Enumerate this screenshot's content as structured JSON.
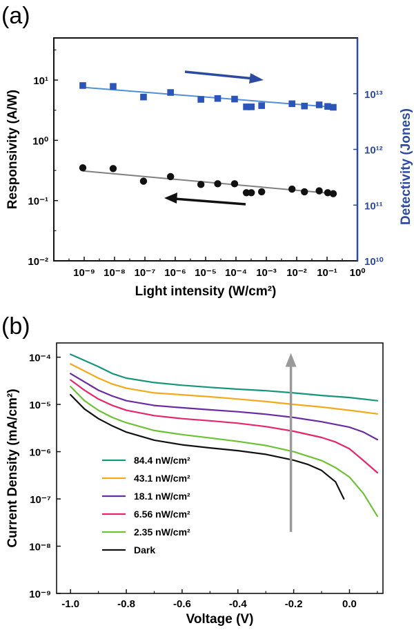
{
  "chart_data": [
    {
      "panel": "(a)",
      "type": "scatter",
      "x_scale": "log",
      "y_scale": "log",
      "xlabel": "Light intensity (W/cm²)",
      "xlim": [
        1e-10,
        1
      ],
      "x_ticks": [
        "10⁻⁹",
        "10⁻⁸",
        "10⁻⁷",
        "10⁻⁶",
        "10⁻⁵",
        "10⁻⁴",
        "10⁻³",
        "10⁻²",
        "10⁻¹",
        "10⁰"
      ],
      "y_left": {
        "label": "Responsivity (A/W)",
        "ylim": [
          0.01,
          50
        ],
        "ticks": [
          "10⁻²",
          "10⁻¹",
          "10⁰",
          "10¹"
        ],
        "color": "#111111"
      },
      "y_right": {
        "label": "Detectivity (Jones)",
        "ylim": [
          10000000000.0,
          100000000000000.0
        ],
        "ticks": [
          "10¹⁰",
          "10¹¹",
          "10¹²",
          "10¹³"
        ],
        "color": "#1f3f9a"
      },
      "series": [
        {
          "axis": "left",
          "marker": "circle",
          "color": "#111111",
          "fit_color": "#808080",
          "x": [
            9e-10,
            9e-09,
            9e-08,
            7e-07,
            7e-06,
            2.5e-05,
            9e-05,
            0.00022,
            0.00032,
            0.0007,
            0.007,
            0.018,
            0.055,
            0.105,
            0.16
          ],
          "y": [
            0.35,
            0.34,
            0.21,
            0.25,
            0.185,
            0.19,
            0.19,
            0.135,
            0.135,
            0.14,
            0.155,
            0.14,
            0.145,
            0.135,
            0.13
          ],
          "fit": {
            "x": [
              9e-10,
              0.18
            ],
            "y": [
              0.31,
              0.13
            ]
          }
        },
        {
          "axis": "right",
          "marker": "square",
          "color": "#2b55b8",
          "fit_color": "#4f8fd6",
          "x": [
            9e-10,
            9e-09,
            9e-08,
            7e-07,
            7e-06,
            2.5e-05,
            9e-05,
            0.00022,
            0.00032,
            0.0007,
            0.007,
            0.018,
            0.055,
            0.105,
            0.16
          ],
          "y": [
            14000000000000.0,
            13500000000000.0,
            8700000000000.0,
            10500000000000.0,
            7900000000000.0,
            8200000000000.0,
            8000000000000.0,
            5800000000000.0,
            5800000000000.0,
            6100000000000.0,
            6600000000000.0,
            6000000000000.0,
            6300000000000.0,
            5900000000000.0,
            5700000000000.0
          ],
          "fit": {
            "x": [
              9e-10,
              0.18
            ],
            "y": [
              13000000000000.0,
              5700000000000.0
            ]
          }
        }
      ],
      "arrows": [
        {
          "direction": "right",
          "color": "#2b4aa0"
        },
        {
          "direction": "left",
          "color": "#111111"
        }
      ]
    },
    {
      "panel": "(b)",
      "type": "line",
      "y_scale": "log",
      "xlabel": "Voltage (V)",
      "ylabel": "Current Density (mA/cm²)",
      "xlim": [
        -1.05,
        0.12
      ],
      "ylim": [
        1e-09,
        0.0002
      ],
      "x_ticks": [
        "-1.0",
        "-0.8",
        "-0.6",
        "-0.4",
        "-0.2",
        "0.0"
      ],
      "y_ticks": [
        "10⁻⁹",
        "10⁻⁸",
        "10⁻⁷",
        "10⁻⁶",
        "10⁻⁵",
        "10⁻⁴"
      ],
      "arrow": {
        "x": -0.21,
        "from": 2e-08,
        "to": 0.0001,
        "color": "#9a9a9a"
      },
      "series": [
        {
          "name": "84.4 nW/cm²",
          "color": "#14967a",
          "x": [
            -1.0,
            -0.95,
            -0.9,
            -0.85,
            -0.8,
            -0.7,
            -0.6,
            -0.5,
            -0.4,
            -0.3,
            -0.2,
            -0.1,
            0.0,
            0.1
          ],
          "y": [
            0.000115,
            8.5e-05,
            6.3e-05,
            4.5e-05,
            3.6e-05,
            2.9e-05,
            2.55e-05,
            2.3e-05,
            2.1e-05,
            1.95e-05,
            1.75e-05,
            1.55e-05,
            1.4e-05,
            1.2e-05
          ]
        },
        {
          "name": "43.1 nW/cm²",
          "color": "#f5a818",
          "x": [
            -1.0,
            -0.95,
            -0.9,
            -0.85,
            -0.8,
            -0.7,
            -0.6,
            -0.5,
            -0.4,
            -0.3,
            -0.2,
            -0.1,
            0.0,
            0.1
          ],
          "y": [
            7.2e-05,
            5.1e-05,
            3.6e-05,
            2.7e-05,
            2.2e-05,
            1.75e-05,
            1.6e-05,
            1.45e-05,
            1.3e-05,
            1.15e-05,
            1e-05,
            8.8e-06,
            7.5e-06,
            6.3e-06
          ]
        },
        {
          "name": "18.1 nW/cm²",
          "color": "#6a2aa3",
          "x": [
            -1.0,
            -0.95,
            -0.9,
            -0.85,
            -0.8,
            -0.7,
            -0.6,
            -0.5,
            -0.4,
            -0.3,
            -0.2,
            -0.1,
            0.0,
            0.05,
            0.1
          ],
          "y": [
            4.5e-05,
            3e-05,
            2e-05,
            1.5e-05,
            1.2e-05,
            9.5e-06,
            8.5e-06,
            7.7e-06,
            7e-06,
            6.2e-06,
            5.3e-06,
            4.3e-06,
            3.3e-06,
            2.6e-06,
            1.8e-06
          ]
        },
        {
          "name": "6.56 nW/cm²",
          "color": "#e8246a",
          "x": [
            -1.0,
            -0.95,
            -0.9,
            -0.85,
            -0.8,
            -0.7,
            -0.6,
            -0.5,
            -0.4,
            -0.3,
            -0.2,
            -0.1,
            -0.05,
            0.0,
            0.05,
            0.1
          ],
          "y": [
            3.3e-05,
            2e-05,
            1.3e-05,
            9.5e-06,
            7.5e-06,
            5.8e-06,
            5e-06,
            4.5e-06,
            4e-06,
            3.4e-06,
            2.7e-06,
            2e-06,
            1.6e-06,
            1.15e-06,
            6.5e-07,
            3.6e-07
          ]
        },
        {
          "name": "2.35 nW/cm²",
          "color": "#6cc234",
          "x": [
            -1.0,
            -0.95,
            -0.9,
            -0.85,
            -0.8,
            -0.7,
            -0.6,
            -0.5,
            -0.4,
            -0.3,
            -0.2,
            -0.1,
            -0.05,
            0.0,
            0.05,
            0.1
          ],
          "y": [
            2.4e-05,
            1.2e-05,
            7.5e-06,
            5.3e-06,
            4.1e-06,
            2.8e-06,
            2.3e-06,
            1.95e-06,
            1.65e-06,
            1.35e-06,
            1e-06,
            6.5e-07,
            4.6e-07,
            2.9e-07,
            1.3e-07,
            4.3e-08
          ]
        },
        {
          "name": "Dark",
          "color": "#111111",
          "x": [
            -1.0,
            -0.95,
            -0.9,
            -0.85,
            -0.8,
            -0.7,
            -0.6,
            -0.5,
            -0.4,
            -0.3,
            -0.2,
            -0.15,
            -0.1,
            -0.05,
            -0.02
          ],
          "y": [
            1.6e-05,
            8e-06,
            5e-06,
            3.5e-06,
            2.6e-06,
            1.75e-06,
            1.4e-06,
            1.2e-06,
            1.05e-06,
            8.8e-07,
            6.6e-07,
            5.4e-07,
            4e-07,
            2.3e-07,
            1e-07
          ]
        }
      ]
    }
  ]
}
